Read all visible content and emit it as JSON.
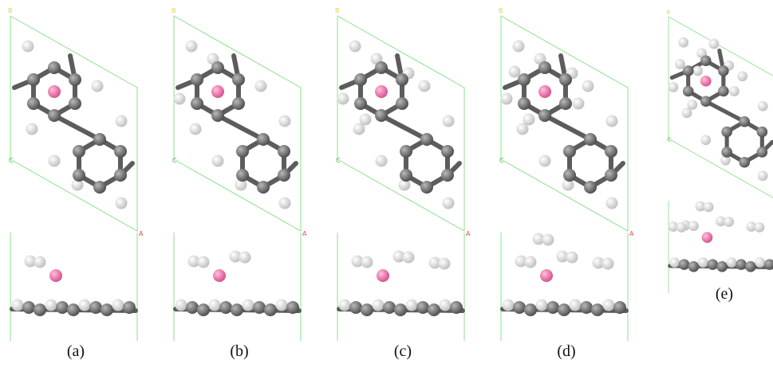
{
  "panels": [
    {
      "caption": "(a)",
      "axes": {
        "b": "B",
        "c": "C",
        "a": "A"
      }
    },
    {
      "caption": "(b)",
      "axes": {
        "b": "B",
        "c": "C",
        "a": "A"
      }
    },
    {
      "caption": "(c)",
      "axes": {
        "b": "B",
        "c": "C",
        "a": "A"
      }
    },
    {
      "caption": "(d)",
      "axes": {
        "b": "B",
        "c": "C",
        "a": "A"
      }
    },
    {
      "caption": "(e)",
      "axes": {
        "b": "B",
        "c": "C"
      }
    }
  ]
}
